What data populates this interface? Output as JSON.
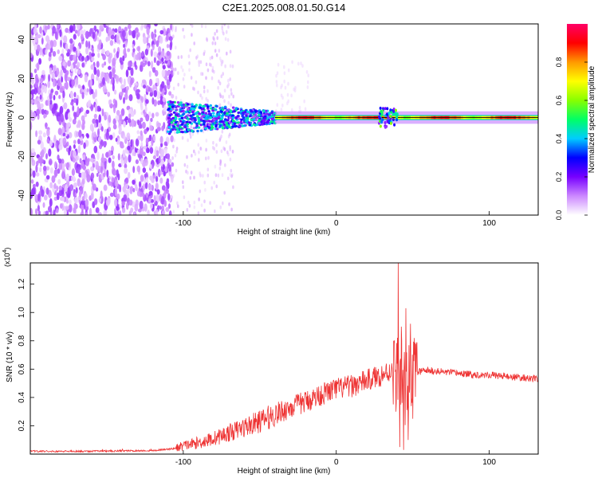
{
  "title": "C2E1.2025.008.01.50.G14",
  "chart_data": [
    {
      "type": "heatmap",
      "xlabel": "Height of straight line (km)",
      "ylabel": "Frequency (Hz)",
      "xlim": [
        -200,
        132
      ],
      "ylim": [
        -50,
        48
      ],
      "xticks": [
        -100,
        0,
        100
      ],
      "yticks": [
        -40,
        -20,
        0,
        20,
        40
      ],
      "colorbar": {
        "label": "Normalized spectral amplitude",
        "range": [
          0,
          1
        ],
        "ticks": [
          "0.0",
          "0.2",
          "0.4",
          "0.6",
          "0.8"
        ],
        "colors": [
          "#ffffff",
          "#cc88ff",
          "#7700ff",
          "#0000ff",
          "#00ccff",
          "#00ff66",
          "#88ff00",
          "#ffff00",
          "#ff9900",
          "#ff0000",
          "#ff0066"
        ]
      }
    },
    {
      "type": "line",
      "xlabel": "Height of straight line (km)",
      "ylabel": "SNR (10 * v/v)",
      "scale_label": "(x10",
      "scale_exp": "4",
      "scale_close": ")",
      "xlim": [
        -200,
        132
      ],
      "ylim": [
        0,
        1.35
      ],
      "xticks": [
        -100,
        0,
        100
      ],
      "yticks": [
        "0.2",
        "0.4",
        "0.6",
        "0.8",
        "1.0",
        "1.2"
      ],
      "line_color": "#ee3333",
      "x": [
        -200,
        -160,
        -120,
        -105,
        -100,
        -90,
        -80,
        -70,
        -60,
        -50,
        -40,
        -30,
        -20,
        -10,
        0,
        10,
        20,
        30,
        38,
        41,
        43,
        45,
        48,
        52,
        60,
        70,
        80,
        90,
        100,
        110,
        120,
        132
      ],
      "y": [
        0.02,
        0.02,
        0.025,
        0.04,
        0.06,
        0.08,
        0.11,
        0.15,
        0.19,
        0.23,
        0.28,
        0.33,
        0.37,
        0.42,
        0.46,
        0.48,
        0.52,
        0.56,
        0.6,
        0.62,
        0.55,
        0.45,
        0.55,
        0.58,
        0.59,
        0.58,
        0.57,
        0.56,
        0.56,
        0.55,
        0.54,
        0.53
      ],
      "spikes": [
        {
          "x": 39,
          "y": 0.3,
          "dir": "down"
        },
        {
          "x": 40.5,
          "y": 1.35,
          "dir": "up"
        },
        {
          "x": 41.5,
          "y": 0.05,
          "dir": "down"
        },
        {
          "x": 42.5,
          "y": 0.9,
          "dir": "up"
        },
        {
          "x": 44,
          "y": 0.03,
          "dir": "down"
        },
        {
          "x": 45.5,
          "y": 1.03,
          "dir": "up"
        },
        {
          "x": 47,
          "y": 0.1,
          "dir": "down"
        },
        {
          "x": 48.5,
          "y": 0.92,
          "dir": "up"
        },
        {
          "x": 50,
          "y": 0.25,
          "dir": "down"
        },
        {
          "x": 51,
          "y": 0.82,
          "dir": "up"
        }
      ]
    }
  ]
}
